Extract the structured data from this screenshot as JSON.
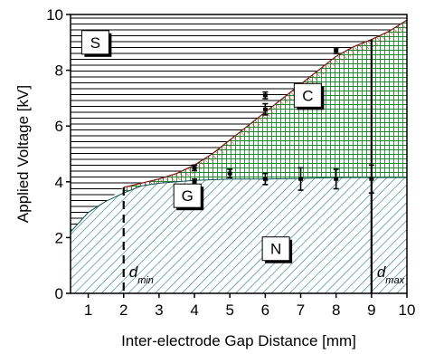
{
  "chart_data": {
    "type": "area",
    "title": "",
    "xlabel": "Inter-electrode Gap Distance [mm]",
    "ylabel": "Applied Voltage [kV]",
    "xlim": [
      0.5,
      10
    ],
    "ylim": [
      0,
      10
    ],
    "xticks": [
      "1",
      "2",
      "3",
      "4",
      "5",
      "6",
      "7",
      "8",
      "9",
      "10"
    ],
    "yticks": [
      "0",
      "2",
      "4",
      "6",
      "8",
      "10"
    ],
    "grid": false,
    "regions": [
      {
        "label": "S",
        "label_at": [
          1.2,
          9.0
        ],
        "color": "#000000",
        "pattern": "horizontal"
      },
      {
        "label": "C",
        "label_at": [
          7.2,
          7.1
        ],
        "color": "#1a8a2e",
        "pattern": "grid"
      },
      {
        "label": "G",
        "label_at": [
          3.8,
          3.5
        ],
        "color": "#e03a3a",
        "pattern": "diagonal"
      },
      {
        "label": "N",
        "label_at": [
          6.3,
          1.6
        ],
        "color": "#1f7a7a",
        "pattern": "diagonal"
      }
    ],
    "upper_boundary": {
      "x": [
        2.0,
        2.5,
        3.0,
        3.5,
        4.0,
        4.5,
        5.0,
        5.5,
        6.0,
        6.5,
        7.0,
        7.5,
        8.0,
        8.5,
        9.0,
        9.5,
        10.0
      ],
      "y": [
        3.8,
        3.95,
        4.1,
        4.3,
        4.6,
        5.0,
        5.5,
        6.0,
        6.5,
        7.0,
        7.5,
        8.0,
        8.5,
        8.85,
        9.1,
        9.4,
        9.8
      ]
    },
    "lower_boundary": {
      "x": [
        0.5,
        1.0,
        1.5,
        2.0,
        2.5,
        3.0,
        3.5,
        4.0,
        5.0,
        6.0,
        7.0,
        8.0,
        9.0,
        10.0
      ],
      "y": [
        2.2,
        2.9,
        3.3,
        3.6,
        3.85,
        3.95,
        4.0,
        4.05,
        4.1,
        4.1,
        4.12,
        4.15,
        4.15,
        4.15
      ]
    },
    "breakdown_points": {
      "x": [
        4,
        6,
        6,
        8
      ],
      "y": [
        4.5,
        7.1,
        6.6,
        8.7
      ],
      "err": [
        0.1,
        0.12,
        0.2,
        0.1
      ]
    },
    "glow_threshold_points": {
      "x": [
        4,
        5,
        6,
        7,
        8,
        9
      ],
      "y": [
        4.0,
        4.3,
        4.1,
        4.1,
        4.1,
        4.1
      ],
      "err": [
        0.1,
        0.15,
        0.2,
        0.4,
        0.35,
        0.5
      ]
    },
    "markers": [
      {
        "name": "d_min",
        "label": "d",
        "sub": "min",
        "x": 2.0,
        "y_top": 3.8,
        "style": "dashed"
      },
      {
        "name": "d_max",
        "label": "d",
        "sub": "max",
        "x": 9.0,
        "y_top": 9.1,
        "style": "solid"
      }
    ]
  }
}
